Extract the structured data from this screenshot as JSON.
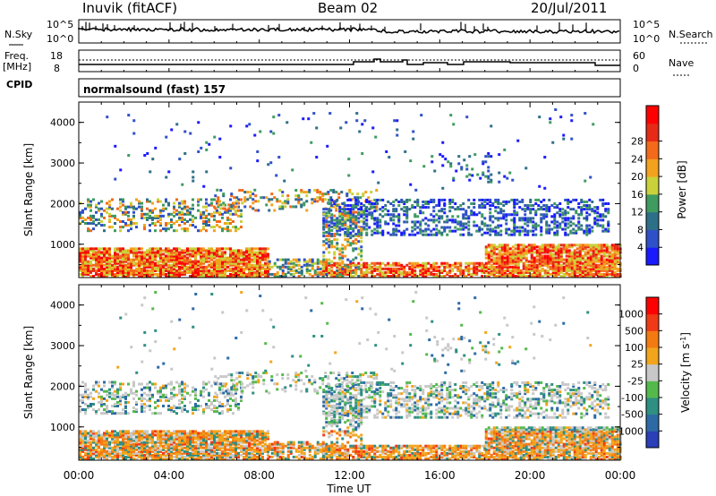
{
  "header": {
    "station": "Inuvik (fitACF)",
    "beam": "Beam 02",
    "date": "20/Jul/2011"
  },
  "noise_panel": {
    "left_label": "N.Sky",
    "right_label": "N.Search",
    "left_ticks": [
      "10^5",
      "10^0"
    ],
    "right_ticks": [
      "10^5",
      "10^0"
    ]
  },
  "freq_panel": {
    "left_label_1": "Freq.",
    "left_label_2": "[MHz]",
    "right_label": "Nave",
    "left_ticks": [
      "18",
      "8"
    ],
    "right_ticks": [
      "60",
      "0"
    ],
    "cpid_label": "CPID",
    "program": "normalsound (fast) 157"
  },
  "colors": {
    "axis": "#000000",
    "trace": "#000000"
  },
  "chart_data": [
    {
      "type": "heatmap",
      "name": "power",
      "ylabel": "Slant Range [km]",
      "ylim": [
        180,
        4500
      ],
      "yticks": [
        "1000",
        "2000",
        "3000",
        "4000"
      ],
      "xticks": [
        "00:00",
        "04:00",
        "08:00",
        "12:00",
        "16:00",
        "20:00",
        "00:00"
      ],
      "colorbar": {
        "label": "Power [dB]",
        "ticks": [
          "4",
          "8",
          "12",
          "16",
          "20",
          "24",
          "28"
        ],
        "colors": [
          "#1a1aff",
          "#2f50c8",
          "#2e6f88",
          "#3f9b5f",
          "#c9d23a",
          "#f3a21d",
          "#f26a1a",
          "#e62a16",
          "#ff0000"
        ]
      }
    },
    {
      "type": "heatmap",
      "name": "velocity",
      "ylabel": "Slant Range [km]",
      "ylim": [
        180,
        4500
      ],
      "yticks": [
        "1000",
        "2000",
        "3000",
        "4000"
      ],
      "xticks": [
        "00:00",
        "04:00",
        "08:00",
        "12:00",
        "16:00",
        "20:00",
        "00:00"
      ],
      "xlabel": "Time UT",
      "colorbar": {
        "label": "Velocity [m s",
        "label_sup": "-1",
        "label_end": "]",
        "ticks": [
          "1000",
          "500",
          "100",
          "25",
          "-25",
          "-100",
          "-500",
          "-1000"
        ],
        "colors": [
          "#2a3fb8",
          "#2d6aa5",
          "#2e8f82",
          "#54b94b",
          "#c8c8c8",
          "#f2a51c",
          "#f37a12",
          "#f03a16",
          "#ff0000"
        ]
      }
    }
  ]
}
